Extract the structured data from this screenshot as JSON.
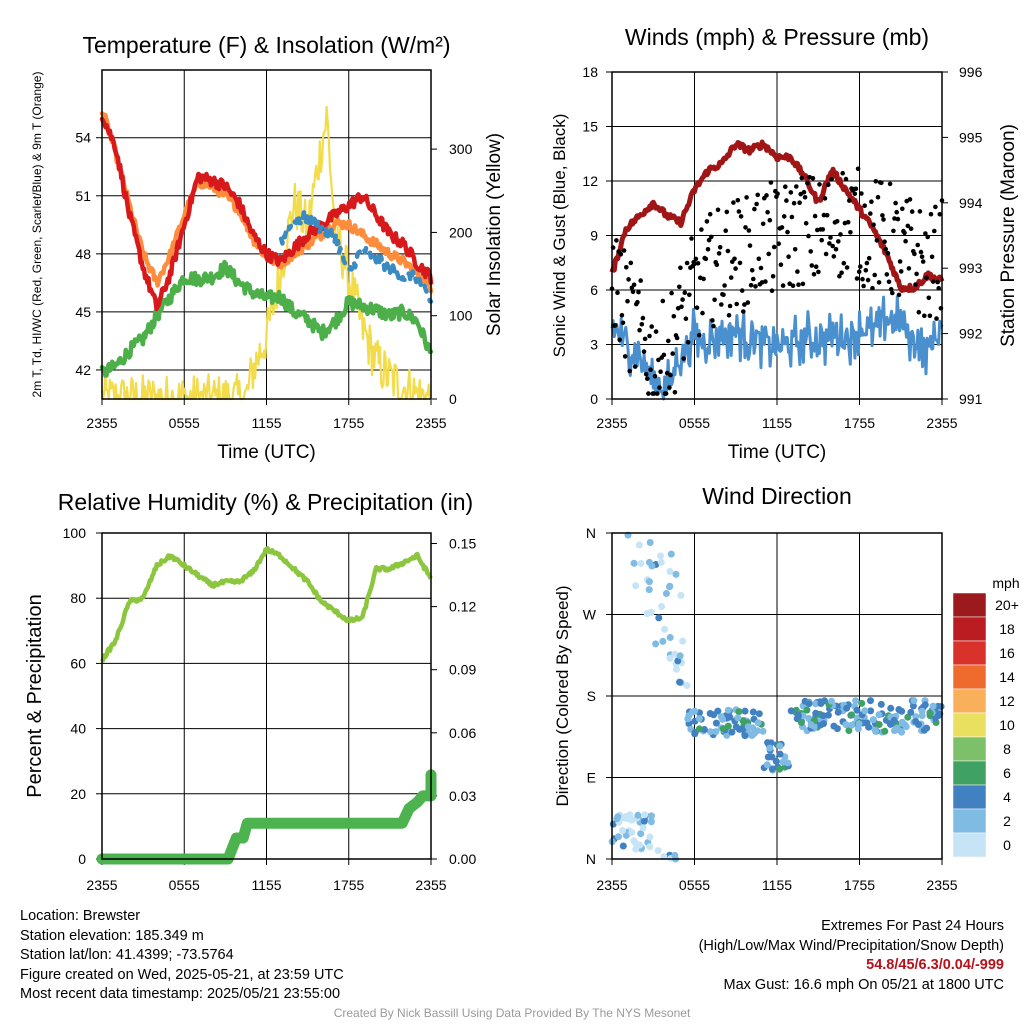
{
  "chart_data": [
    {
      "id": "temp",
      "type": "line",
      "title": "Temperature (F) & Insolation (W/m²)",
      "xlabel": "Time (UTC)",
      "ylabel_left": "2m T, Td, HI/WC (Red, Green, Scarlet/Blue) & 9m T (Orange)",
      "ylabel_right": "Solar Insolation (Yellow)",
      "xticks": [
        "2355",
        "0555",
        "1155",
        "1755",
        "2355"
      ],
      "ylim": [
        40.5,
        57.5
      ],
      "yticks": [
        42,
        45,
        48,
        51,
        54
      ],
      "y2lim": [
        0,
        395
      ],
      "y2ticks": [
        0,
        100,
        200,
        300
      ],
      "series": [
        {
          "color": "#d7191c",
          "kps": [
            [
              0,
              55.2
            ],
            [
              1,
              53.5
            ],
            [
              2,
              50
            ],
            [
              3,
              47.3
            ],
            [
              4,
              45.2
            ],
            [
              5,
              47
            ],
            [
              6,
              49.5
            ],
            [
              7,
              52
            ],
            [
              8,
              51.8
            ],
            [
              9,
              51.5
            ],
            [
              10,
              50.6
            ],
            [
              11,
              49
            ],
            [
              12,
              48
            ],
            [
              13,
              47.6
            ],
            [
              14,
              48.3
            ],
            [
              15,
              49
            ],
            [
              16,
              49.5
            ],
            [
              17,
              50
            ],
            [
              18,
              50.5
            ],
            [
              19,
              51
            ],
            [
              20,
              50
            ],
            [
              21,
              49
            ],
            [
              22,
              48.5
            ],
            [
              23,
              47.5
            ],
            [
              24,
              46.8
            ]
          ],
          "amp": 0.3
        },
        {
          "color": "#fd8d3c",
          "kps": [
            [
              0,
              55.5
            ],
            [
              1,
              53.2
            ],
            [
              2,
              50.5
            ],
            [
              3,
              48
            ],
            [
              4,
              46.5
            ],
            [
              5,
              48
            ],
            [
              6,
              50
            ],
            [
              7,
              51.7
            ],
            [
              8,
              51.5
            ],
            [
              9,
              51
            ],
            [
              10,
              50.3
            ],
            [
              11,
              48.8
            ],
            [
              12,
              47.8
            ],
            [
              13,
              47.5
            ],
            [
              14,
              48
            ],
            [
              15,
              48.5
            ],
            [
              16,
              49
            ],
            [
              17,
              49.6
            ],
            [
              18,
              49.5
            ],
            [
              19,
              49
            ],
            [
              20,
              48.5
            ],
            [
              21,
              48
            ],
            [
              22,
              47.6
            ],
            [
              23,
              47
            ],
            [
              24,
              46.3
            ]
          ],
          "amp": 0.25
        },
        {
          "color": "#4daf4a",
          "kps": [
            [
              0,
              41.8
            ],
            [
              1,
              42.2
            ],
            [
              2,
              43
            ],
            [
              3,
              43.6
            ],
            [
              4,
              44.8
            ],
            [
              5,
              45.8
            ],
            [
              6,
              46.8
            ],
            [
              7,
              46.7
            ],
            [
              8,
              46.8
            ],
            [
              9,
              47.3
            ],
            [
              10,
              46.5
            ],
            [
              11,
              46
            ],
            [
              12,
              45.7
            ],
            [
              13,
              45.8
            ],
            [
              14,
              45
            ],
            [
              15,
              44.6
            ],
            [
              16,
              43.9
            ],
            [
              17,
              44.5
            ],
            [
              18,
              45.5
            ],
            [
              19,
              45.3
            ],
            [
              20,
              45.1
            ],
            [
              21,
              44.8
            ],
            [
              22,
              45
            ],
            [
              23,
              44.5
            ],
            [
              24,
              42.8
            ]
          ],
          "amp": 0.35
        },
        {
          "color": "#3b8bc2",
          "kps": [
            [
              13,
              48.6
            ],
            [
              14,
              49.7
            ],
            [
              15,
              49.9
            ],
            [
              16,
              49.3
            ],
            [
              17,
              48.9
            ],
            [
              18,
              47
            ],
            [
              19,
              48.3
            ],
            [
              20,
              47.7
            ],
            [
              21,
              47.3
            ],
            [
              22,
              46.8
            ],
            [
              23,
              46.8
            ],
            [
              24,
              45.5
            ]
          ],
          "amp": 0.3,
          "dashed": true
        },
        {
          "color": "#f2dc4c",
          "axis": "right",
          "kps": [
            [
              0,
              0
            ],
            [
              10.5,
              0
            ],
            [
              11,
              35
            ],
            [
              12,
              75
            ],
            [
              13,
              150
            ],
            [
              14,
              235
            ],
            [
              15,
              205
            ],
            [
              15.8,
              285
            ],
            [
              16.4,
              340
            ],
            [
              17,
              200
            ],
            [
              17.6,
              170
            ],
            [
              18,
              145
            ],
            [
              19,
              85
            ],
            [
              20,
              45
            ],
            [
              21,
              25
            ],
            [
              22,
              15
            ],
            [
              23,
              5
            ],
            [
              24,
              0
            ]
          ],
          "amp": 30
        }
      ]
    },
    {
      "id": "winds",
      "type": "line",
      "title": "Winds (mph) & Pressure (mb)",
      "xlabel": "Time (UTC)",
      "ylabel_left": "Sonic Wind & Gust (Blue, Black)",
      "ylabel_right": "Station Pressure (Maroon)",
      "xticks": [
        "2355",
        "0555",
        "1155",
        "1755",
        "2355"
      ],
      "ylim": [
        0,
        18
      ],
      "yticks": [
        0,
        3,
        6,
        9,
        12,
        15,
        18
      ],
      "y2lim": [
        991,
        996
      ],
      "y2ticks": [
        991,
        992,
        993,
        994,
        995,
        996
      ],
      "series": [
        {
          "color": "#a01515",
          "axis": "right",
          "kps": [
            [
              0,
              992.9
            ],
            [
              1,
              993.6
            ],
            [
              2,
              993.8
            ],
            [
              3,
              994.0
            ],
            [
              4,
              993.8
            ],
            [
              5,
              993.7
            ],
            [
              6,
              994.2
            ],
            [
              7,
              994.5
            ],
            [
              8,
              994.6
            ],
            [
              9,
              994.9
            ],
            [
              10,
              994.8
            ],
            [
              11,
              994.9
            ],
            [
              12,
              994.7
            ],
            [
              13,
              994.7
            ],
            [
              14,
              994.4
            ],
            [
              15,
              994.0
            ],
            [
              16,
              994.5
            ],
            [
              17,
              994.2
            ],
            [
              18,
              993.9
            ],
            [
              19,
              993.6
            ],
            [
              20,
              993.2
            ],
            [
              21,
              992.7
            ],
            [
              22,
              992.7
            ],
            [
              23,
              992.9
            ],
            [
              24,
              992.8
            ]
          ],
          "amp": 0.05
        },
        {
          "color": "#4a90cf",
          "kps": [
            [
              0,
              4
            ],
            [
              1,
              3
            ],
            [
              2,
              2.3
            ],
            [
              3,
              1
            ],
            [
              4,
              0.5
            ],
            [
              5,
              2.5
            ],
            [
              6,
              3.5
            ],
            [
              7,
              3.2
            ],
            [
              8,
              3.6
            ],
            [
              9,
              3.8
            ],
            [
              10,
              3.3
            ],
            [
              11,
              3.2
            ],
            [
              12,
              2.7
            ],
            [
              13,
              3.0
            ],
            [
              14,
              3.4
            ],
            [
              15,
              3.1
            ],
            [
              16,
              3.5
            ],
            [
              17,
              3.3
            ],
            [
              18,
              3.9
            ],
            [
              19,
              3.7
            ],
            [
              20,
              4.5
            ],
            [
              21,
              4.2
            ],
            [
              22,
              3.2
            ],
            [
              23,
              2.7
            ],
            [
              24,
              4
            ]
          ],
          "amp": 1.0
        },
        {
          "color": "#000000",
          "scatter": true,
          "kps": [
            [
              0,
              7
            ],
            [
              1,
              5
            ],
            [
              2,
              3.5
            ],
            [
              3,
              2
            ],
            [
              4,
              2.3
            ],
            [
              5,
              4.5
            ],
            [
              6,
              6
            ],
            [
              7,
              7
            ],
            [
              8,
              7.5
            ],
            [
              9,
              8
            ],
            [
              10,
              8
            ],
            [
              11,
              9
            ],
            [
              12,
              8.5
            ],
            [
              13,
              9
            ],
            [
              14,
              9.5
            ],
            [
              15,
              9
            ],
            [
              16,
              9.5
            ],
            [
              17,
              10
            ],
            [
              18,
              9.5
            ],
            [
              19,
              9
            ],
            [
              20,
              9
            ],
            [
              21,
              8
            ],
            [
              22,
              8
            ],
            [
              23,
              7
            ],
            [
              24,
              8
            ]
          ],
          "amp": 3.2
        }
      ]
    },
    {
      "id": "rh",
      "type": "line",
      "title": "Relative Humidity (%) & Precipitation (in)",
      "xlabel": "",
      "ylabel_left": "Percent & Precipitation",
      "xticks": [
        "2355",
        "0555",
        "1155",
        "1755",
        "2355"
      ],
      "ylim": [
        0,
        100
      ],
      "yticks": [
        0,
        20,
        40,
        60,
        80,
        100
      ],
      "y2lim": [
        0,
        0.155
      ],
      "y2ticks": [
        "0.00",
        "0.03",
        "0.06",
        "0.09",
        "0.12",
        "0.15"
      ],
      "series": [
        {
          "color": "#8cc63f",
          "kps": [
            [
              0,
              61
            ],
            [
              1,
              67
            ],
            [
              2,
              79
            ],
            [
              3,
              80
            ],
            [
              4,
              90
            ],
            [
              5,
              93
            ],
            [
              6,
              90
            ],
            [
              7,
              87
            ],
            [
              8,
              84
            ],
            [
              9,
              85
            ],
            [
              10,
              85
            ],
            [
              11,
              88
            ],
            [
              12,
              95
            ],
            [
              13,
              93
            ],
            [
              14,
              89
            ],
            [
              15,
              85
            ],
            [
              16,
              79
            ],
            [
              17,
              76
            ],
            [
              18,
              73
            ],
            [
              19,
              74
            ],
            [
              20,
              89
            ],
            [
              21,
              89
            ],
            [
              22,
              91
            ],
            [
              23,
              93
            ],
            [
              24,
              86
            ]
          ],
          "amp": 0.6
        },
        {
          "color": "#4cb34f",
          "steps": [
            [
              0,
              0
            ],
            [
              9.2,
              0
            ],
            [
              9.8,
              0.01
            ],
            [
              10.3,
              0.01
            ],
            [
              10.6,
              0.017
            ],
            [
              21.9,
              0.017
            ],
            [
              22.4,
              0.024
            ],
            [
              23,
              0.027
            ],
            [
              23.4,
              0.03
            ],
            [
              24,
              0.03
            ],
            [
              24,
              0.04
            ]
          ],
          "axis": "right",
          "note": "precip"
        }
      ]
    },
    {
      "id": "wdir",
      "type": "scatter",
      "title": "Wind Direction",
      "xlabel": "",
      "ylabel_left": "Direction (Colored By Speed)",
      "xticks": [
        "2355",
        "0555",
        "1155",
        "1755",
        "2355"
      ],
      "yticks": [
        "N",
        "E",
        "S",
        "W",
        "N"
      ],
      "legend": {
        "title": "mph",
        "labels": [
          "0",
          "2",
          "4",
          "6",
          "8",
          "10",
          "12",
          "14",
          "16",
          "18",
          "20+"
        ],
        "colors": [
          "#c6e4f5",
          "#7fbbe3",
          "#4281c1",
          "#3fa164",
          "#7dc06a",
          "#e9e05f",
          "#f8b05b",
          "#ef6a2d",
          "#d8322a",
          "#bb1c21",
          "#9c1a1e"
        ]
      },
      "clusters": [
        {
          "t": [
            0,
            3
          ],
          "dir": [
            10,
            50
          ],
          "n": 40
        },
        {
          "t": [
            0.6,
            2.8
          ],
          "dir": [
            290,
            360
          ],
          "n": 10
        },
        {
          "t": [
            2.5,
            5.2
          ],
          "dir": [
            220,
            340
          ],
          "n": 22
        },
        {
          "t": [
            2.5,
            5.4
          ],
          "dir": [
            0,
            10
          ],
          "n": 6
        },
        {
          "t": [
            4.5,
            5.6
          ],
          "dir": [
            190,
            240
          ],
          "n": 10
        },
        {
          "t": [
            5.5,
            11
          ],
          "dir": [
            135,
            165
          ],
          "n": 70
        },
        {
          "t": [
            11,
            13
          ],
          "dir": [
            95,
            130
          ],
          "n": 25
        },
        {
          "t": [
            13,
            24
          ],
          "dir": [
            140,
            175
          ],
          "n": 150
        }
      ]
    }
  ],
  "info_left": [
    "Location: Brewster",
    "Station elevation: 185.349 m",
    "Station lat/lon: 41.4399; -73.5764",
    "Figure created on Wed, 2025-05-21, at 23:59 UTC",
    "Most recent data timestamp: 2025/05/21 23:55:00"
  ],
  "info_right": {
    "title": "Extremes For Past 24 Hours",
    "subtitle": "(High/Low/Max Wind/Precipitation/Snow Depth)",
    "values": "54.8/45/6.3/0.04/-999",
    "gust": "Max Gust: 16.6 mph On 05/21 at 1800 UTC"
  },
  "credit": "Created By Nick Bassill Using Data Provided By The NYS Mesonet"
}
